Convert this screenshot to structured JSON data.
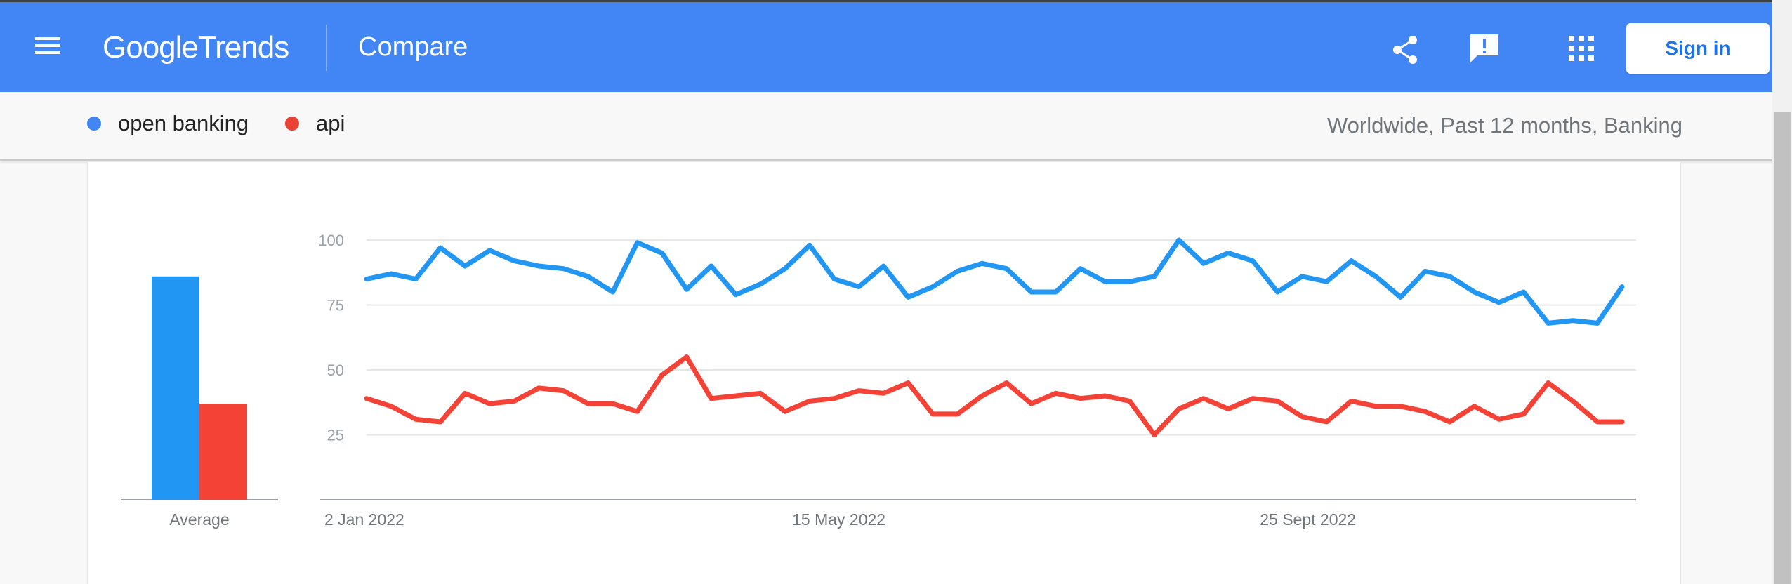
{
  "header": {
    "logo_google": "Google",
    "logo_trends": "Trends",
    "title": "Compare",
    "signin_label": "Sign in",
    "icons": [
      "menu-icon",
      "share-icon",
      "feedback-icon",
      "apps-icon"
    ]
  },
  "terms": [
    {
      "label": "open banking",
      "color": "#4285f4"
    },
    {
      "label": "api",
      "color": "#ea4335"
    }
  ],
  "filters": "Worldwide, Past 12 months, Banking",
  "chart_data": {
    "type": "line",
    "averages": {
      "label": "Average",
      "series": [
        {
          "name": "open banking",
          "value": 86,
          "color": "#2196f3"
        },
        {
          "name": "api",
          "value": 37,
          "color": "#f44336"
        }
      ]
    },
    "ylim": [
      0,
      100
    ],
    "yticks": [
      25,
      50,
      75,
      100
    ],
    "xtick_labels": [
      {
        "index": 0,
        "label": "2 Jan 2022"
      },
      {
        "index": 19,
        "label": "15 May 2022"
      },
      {
        "index": 38,
        "label": "25 Sept 2022"
      }
    ],
    "series": [
      {
        "name": "open banking",
        "color": "#2196f3",
        "values": [
          85,
          87,
          85,
          97,
          90,
          96,
          92,
          90,
          89,
          86,
          80,
          99,
          95,
          81,
          90,
          79,
          83,
          89,
          98,
          85,
          82,
          90,
          78,
          82,
          88,
          91,
          89,
          80,
          80,
          89,
          84,
          84,
          86,
          100,
          91,
          95,
          92,
          80,
          86,
          84,
          92,
          86,
          78,
          88,
          86,
          80,
          76,
          80,
          68,
          69,
          68,
          82
        ]
      },
      {
        "name": "api",
        "color": "#f44336",
        "values": [
          39,
          36,
          31,
          30,
          41,
          37,
          38,
          43,
          42,
          37,
          37,
          34,
          48,
          55,
          39,
          40,
          41,
          34,
          38,
          39,
          42,
          41,
          45,
          33,
          33,
          40,
          45,
          37,
          41,
          39,
          40,
          38,
          25,
          35,
          39,
          35,
          39,
          38,
          32,
          30,
          38,
          36,
          36,
          34,
          30,
          36,
          31,
          33,
          45,
          38,
          30,
          30
        ]
      }
    ]
  }
}
